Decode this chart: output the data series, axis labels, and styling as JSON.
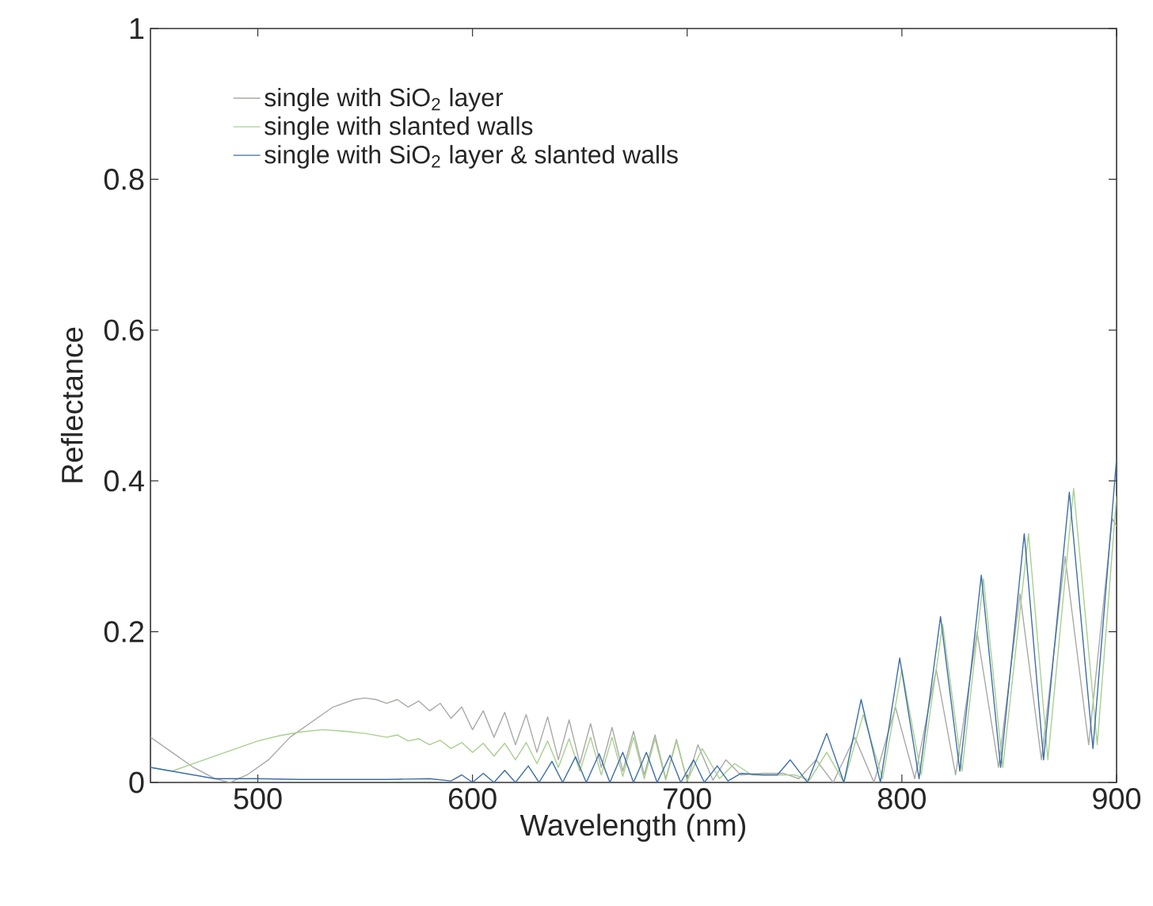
{
  "chart_data": {
    "type": "line",
    "xlabel": "Wavelength (nm)",
    "ylabel": "Reflectance",
    "xlim": [
      450,
      900
    ],
    "ylim": [
      0,
      1
    ],
    "xticks": [
      500,
      600,
      700,
      800,
      900
    ],
    "yticks": [
      0,
      0.2,
      0.4,
      0.6,
      0.8,
      1
    ],
    "grid": false,
    "legend": "top left",
    "marker": "none",
    "line_style": "solid",
    "series": [
      {
        "name": "single with SiO$_{2}$ layer",
        "color": "#a9aaa6",
        "x": [
          450,
          460,
          470,
          480,
          487,
          495,
          505,
          515,
          525,
          535,
          545,
          550,
          555,
          560,
          565,
          570,
          575,
          580,
          585,
          590,
          595,
          600,
          605,
          610,
          615,
          620,
          625,
          630,
          635,
          640,
          645,
          650,
          655,
          660,
          665,
          670,
          675,
          680,
          685,
          690,
          695,
          700,
          705,
          712,
          718,
          725,
          735,
          745,
          752,
          760,
          768,
          778,
          787,
          797,
          806,
          816,
          825,
          835,
          845,
          855,
          865,
          876,
          887,
          898,
          900
        ],
        "values": [
          0.06,
          0.04,
          0.02,
          0.005,
          0.0,
          0.01,
          0.03,
          0.06,
          0.08,
          0.1,
          0.11,
          0.112,
          0.11,
          0.105,
          0.11,
          0.1,
          0.108,
          0.095,
          0.105,
          0.085,
          0.1,
          0.07,
          0.095,
          0.06,
          0.093,
          0.05,
          0.09,
          0.04,
          0.087,
          0.03,
          0.083,
          0.025,
          0.078,
          0.02,
          0.073,
          0.015,
          0.068,
          0.01,
          0.063,
          0.005,
          0.057,
          0.002,
          0.05,
          0.003,
          0.03,
          0.01,
          0.012,
          0.012,
          0.005,
          0.03,
          0.0,
          0.06,
          0.0,
          0.1,
          0.005,
          0.15,
          0.01,
          0.2,
          0.02,
          0.25,
          0.03,
          0.3,
          0.05,
          0.35,
          0.34
        ]
      },
      {
        "name": "single with slanted walls",
        "color": "#a8d08d",
        "x": [
          450,
          460,
          470,
          480,
          490,
          500,
          510,
          520,
          530,
          540,
          550,
          560,
          565,
          570,
          575,
          580,
          585,
          590,
          595,
          600,
          605,
          610,
          615,
          620,
          625,
          630,
          635,
          640,
          645,
          650,
          655,
          660,
          665,
          670,
          675,
          680,
          685,
          690,
          695,
          700,
          707,
          715,
          722,
          730,
          740,
          750,
          757,
          765,
          773,
          782,
          791,
          800,
          809,
          819,
          828,
          838,
          847,
          859,
          868,
          880,
          891,
          900
        ],
        "values": [
          0.02,
          0.015,
          0.025,
          0.035,
          0.045,
          0.055,
          0.062,
          0.067,
          0.07,
          0.068,
          0.065,
          0.06,
          0.063,
          0.055,
          0.058,
          0.05,
          0.056,
          0.045,
          0.053,
          0.04,
          0.052,
          0.035,
          0.052,
          0.03,
          0.053,
          0.025,
          0.055,
          0.02,
          0.058,
          0.015,
          0.06,
          0.01,
          0.06,
          0.008,
          0.06,
          0.005,
          0.058,
          0.003,
          0.055,
          0.002,
          0.045,
          0.005,
          0.025,
          0.01,
          0.01,
          0.01,
          0.003,
          0.04,
          0.0,
          0.09,
          0.005,
          0.15,
          0.01,
          0.21,
          0.015,
          0.27,
          0.02,
          0.33,
          0.03,
          0.39,
          0.05,
          0.38
        ]
      },
      {
        "name": "single with SiO$_{2}$ layer & slanted walls",
        "color": "#3b6ea8",
        "x": [
          450,
          460,
          470,
          480,
          500,
          520,
          540,
          560,
          580,
          590,
          595,
          600,
          605,
          610,
          615,
          620,
          626,
          631,
          637,
          642,
          648,
          653,
          659,
          664,
          670,
          675,
          681,
          686,
          692,
          697,
          703,
          708,
          714,
          719,
          725,
          735,
          742,
          748,
          756,
          765,
          773,
          781,
          790,
          799,
          808,
          818,
          827,
          837,
          846,
          857,
          866,
          878,
          889,
          900
        ],
        "values": [
          0.02,
          0.015,
          0.01,
          0.005,
          0.005,
          0.004,
          0.004,
          0.004,
          0.005,
          0.002,
          0.01,
          0.0,
          0.012,
          0.0,
          0.016,
          0.0,
          0.022,
          0.0,
          0.028,
          0.0,
          0.034,
          0.0,
          0.038,
          0.0,
          0.04,
          0.0,
          0.04,
          0.0,
          0.036,
          0.0,
          0.03,
          0.0,
          0.022,
          0.002,
          0.012,
          0.01,
          0.01,
          0.03,
          0.0,
          0.065,
          0.0,
          0.11,
          0.0,
          0.165,
          0.005,
          0.22,
          0.015,
          0.275,
          0.02,
          0.33,
          0.03,
          0.385,
          0.045,
          0.43
        ]
      }
    ]
  }
}
